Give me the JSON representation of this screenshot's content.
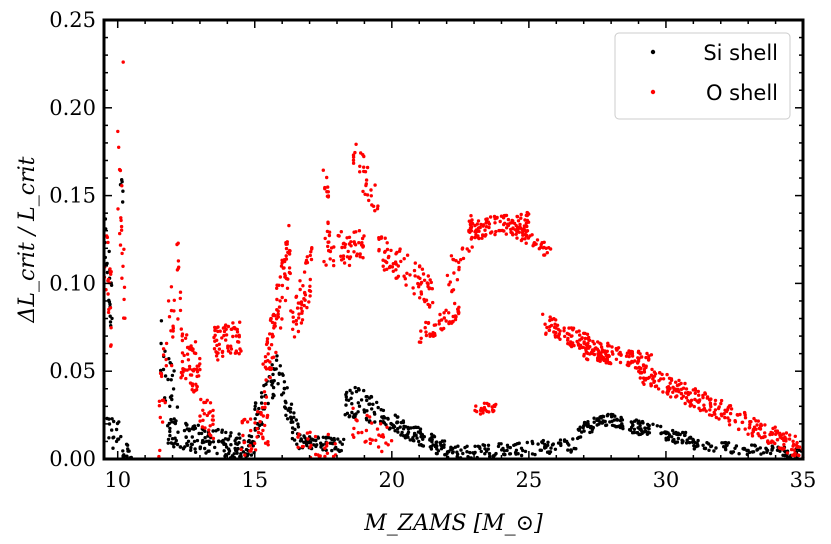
{
  "chart_data": {
    "type": "scatter",
    "xlabel": "M_ZAMS [M_⊙]",
    "ylabel": "ΔL_crit / L_crit",
    "xlim": [
      9.5,
      35
    ],
    "ylim": [
      0,
      0.25
    ],
    "x_ticks": [
      "10",
      "15",
      "20",
      "25",
      "30",
      "35"
    ],
    "y_ticks": [
      "0.00",
      "0.05",
      "0.10",
      "0.15",
      "0.20",
      "0.25"
    ],
    "legend_position": "top-right",
    "grid": false,
    "series": [
      {
        "name": "Si shell",
        "color": "#000000",
        "segments": [
          {
            "x0": 9.5,
            "x1": 9.8,
            "y0": 0.13,
            "y1": 0.08,
            "spread": 0.02,
            "n": 20
          },
          {
            "x0": 9.6,
            "x1": 10.5,
            "y0": 0.02,
            "y1": 0.0,
            "spread": 0.012,
            "n": 30
          },
          {
            "x0": 10.1,
            "x1": 10.3,
            "y0": 0.16,
            "y1": 0.13,
            "spread": 0.01,
            "n": 5
          },
          {
            "x0": 11.5,
            "x1": 12.2,
            "y0": 0.07,
            "y1": 0.02,
            "spread": 0.02,
            "n": 25
          },
          {
            "x0": 11.8,
            "x1": 15.0,
            "y0": 0.015,
            "y1": 0.005,
            "spread": 0.008,
            "n": 150
          },
          {
            "x0": 15.0,
            "x1": 15.8,
            "y0": 0.02,
            "y1": 0.05,
            "spread": 0.012,
            "n": 45
          },
          {
            "x0": 15.8,
            "x1": 16.6,
            "y0": 0.05,
            "y1": 0.01,
            "spread": 0.01,
            "n": 40
          },
          {
            "x0": 16.6,
            "x1": 18.3,
            "y0": 0.01,
            "y1": 0.008,
            "spread": 0.004,
            "n": 60
          },
          {
            "x0": 18.3,
            "x1": 19.5,
            "y0": 0.035,
            "y1": 0.025,
            "spread": 0.01,
            "n": 50
          },
          {
            "x0": 19.5,
            "x1": 22.0,
            "y0": 0.025,
            "y1": 0.005,
            "spread": 0.005,
            "n": 110
          },
          {
            "x0": 22.0,
            "x1": 26.8,
            "y0": 0.003,
            "y1": 0.008,
            "spread": 0.004,
            "n": 120
          },
          {
            "x0": 26.8,
            "x1": 28.0,
            "y0": 0.015,
            "y1": 0.024,
            "spread": 0.004,
            "n": 50
          },
          {
            "x0": 28.0,
            "x1": 31.0,
            "y0": 0.022,
            "y1": 0.01,
            "spread": 0.004,
            "n": 110
          },
          {
            "x0": 31.0,
            "x1": 35.0,
            "y0": 0.008,
            "y1": 0.003,
            "spread": 0.003,
            "n": 90
          }
        ]
      },
      {
        "name": "O shell",
        "color": "#ff0000",
        "segments": [
          {
            "x0": 9.5,
            "x1": 9.8,
            "y0": 0.125,
            "y1": 0.08,
            "spread": 0.025,
            "n": 20
          },
          {
            "x0": 10.0,
            "x1": 10.3,
            "y0": 0.175,
            "y1": 0.08,
            "spread": 0.03,
            "n": 20
          },
          {
            "x0": 10.2,
            "x1": 10.2,
            "y0": 0.226,
            "y1": 0.226,
            "spread": 0.0,
            "n": 1
          },
          {
            "x0": 11.5,
            "x1": 12.3,
            "y0": 0.02,
            "y1": 0.11,
            "spread": 0.03,
            "n": 40
          },
          {
            "x0": 12.3,
            "x1": 13.0,
            "y0": 0.06,
            "y1": 0.05,
            "spread": 0.015,
            "n": 60
          },
          {
            "x0": 13.0,
            "x1": 13.5,
            "y0": 0.03,
            "y1": 0.02,
            "spread": 0.01,
            "n": 25
          },
          {
            "x0": 13.5,
            "x1": 14.5,
            "y0": 0.065,
            "y1": 0.07,
            "spread": 0.01,
            "n": 60
          },
          {
            "x0": 14.5,
            "x1": 15.5,
            "y0": 0.01,
            "y1": 0.02,
            "spread": 0.012,
            "n": 40
          },
          {
            "x0": 15.3,
            "x1": 16.3,
            "y0": 0.04,
            "y1": 0.12,
            "spread": 0.018,
            "n": 90
          },
          {
            "x0": 16.3,
            "x1": 17.1,
            "y0": 0.07,
            "y1": 0.11,
            "spread": 0.015,
            "n": 50
          },
          {
            "x0": 16.5,
            "x1": 18.0,
            "y0": 0.01,
            "y1": 0.005,
            "spread": 0.008,
            "n": 25
          },
          {
            "x0": 17.5,
            "x1": 17.7,
            "y0": 0.17,
            "y1": 0.14,
            "spread": 0.01,
            "n": 12
          },
          {
            "x0": 17.5,
            "x1": 19.0,
            "y0": 0.12,
            "y1": 0.12,
            "spread": 0.01,
            "n": 60
          },
          {
            "x0": 18.6,
            "x1": 19.5,
            "y0": 0.17,
            "y1": 0.15,
            "spread": 0.012,
            "n": 30
          },
          {
            "x0": 18.5,
            "x1": 20.0,
            "y0": 0.02,
            "y1": 0.01,
            "spread": 0.01,
            "n": 30
          },
          {
            "x0": 19.5,
            "x1": 21.5,
            "y0": 0.12,
            "y1": 0.095,
            "spread": 0.01,
            "n": 80
          },
          {
            "x0": 21.0,
            "x1": 22.5,
            "y0": 0.07,
            "y1": 0.085,
            "spread": 0.006,
            "n": 50
          },
          {
            "x0": 22.0,
            "x1": 23.0,
            "y0": 0.1,
            "y1": 0.13,
            "spread": 0.012,
            "n": 30
          },
          {
            "x0": 23.0,
            "x1": 23.8,
            "y0": 0.028,
            "y1": 0.03,
            "spread": 0.003,
            "n": 25
          },
          {
            "x0": 22.8,
            "x1": 25.0,
            "y0": 0.13,
            "y1": 0.135,
            "spread": 0.006,
            "n": 110
          },
          {
            "x0": 24.5,
            "x1": 25.8,
            "y0": 0.13,
            "y1": 0.117,
            "spread": 0.004,
            "n": 40
          },
          {
            "x0": 25.5,
            "x1": 28.0,
            "y0": 0.077,
            "y1": 0.06,
            "spread": 0.006,
            "n": 110
          },
          {
            "x0": 27.0,
            "x1": 29.5,
            "y0": 0.062,
            "y1": 0.055,
            "spread": 0.005,
            "n": 90
          },
          {
            "x0": 29.0,
            "x1": 35.0,
            "y0": 0.05,
            "y1": 0.005,
            "spread": 0.006,
            "n": 260
          }
        ]
      }
    ]
  }
}
